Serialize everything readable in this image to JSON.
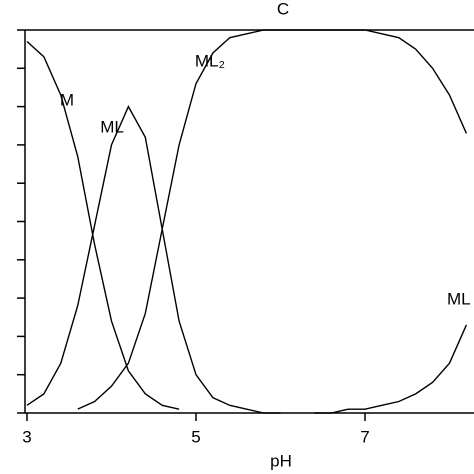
{
  "chart_data": {
    "type": "line",
    "title": "C",
    "xlabel": "pH",
    "x": [
      3.0,
      3.2,
      3.4,
      3.6,
      3.8,
      4.0,
      4.2,
      4.4,
      4.6,
      4.8,
      5.0,
      5.2,
      5.4,
      5.6,
      5.8,
      6.0,
      6.2,
      6.4,
      6.6,
      6.8,
      7.0,
      7.2,
      7.4,
      7.6,
      7.8,
      8.0,
      8.2
    ],
    "series": [
      {
        "name": "M",
        "color": "#000000",
        "values": [
          0.97,
          0.93,
          0.83,
          0.67,
          0.44,
          0.24,
          0.11,
          0.05,
          0.02,
          0.01,
          null,
          null,
          null,
          null,
          null,
          null,
          null,
          null,
          null,
          null,
          null,
          null,
          null,
          null,
          null,
          null,
          null
        ]
      },
      {
        "name": "ML",
        "color": "#000000",
        "values": [
          0.02,
          0.05,
          0.13,
          0.28,
          0.49,
          0.7,
          0.8,
          0.72,
          0.48,
          0.24,
          0.1,
          0.04,
          0.02,
          0.01,
          0.0,
          0.0,
          null,
          null,
          null,
          null,
          null,
          null,
          null,
          null,
          null,
          null,
          null
        ]
      },
      {
        "name": "ML₂",
        "color": "#000000",
        "values": [
          null,
          null,
          null,
          0.01,
          0.03,
          0.07,
          0.13,
          0.26,
          0.48,
          0.7,
          0.86,
          0.94,
          0.98,
          0.99,
          1.0,
          1.0,
          1.0,
          1.0,
          1.0,
          1.0,
          1.0,
          0.99,
          0.98,
          0.95,
          0.9,
          0.83,
          0.73
        ]
      },
      {
        "name": "ML",
        "color": "#000000",
        "values": [
          null,
          null,
          null,
          null,
          null,
          null,
          null,
          null,
          null,
          null,
          null,
          null,
          null,
          null,
          null,
          null,
          null,
          0.0,
          0.0,
          0.01,
          0.01,
          0.02,
          0.03,
          0.05,
          0.08,
          0.13,
          0.23
        ]
      }
    ],
    "xlim": [
      3,
      8.3
    ],
    "xticks": [
      3,
      5,
      7
    ],
    "ylim": [
      0,
      1
    ],
    "yticks": [
      0,
      0.1,
      0.2,
      0.3,
      0.4,
      0.5,
      0.6,
      0.7,
      0.8,
      0.9,
      1
    ]
  }
}
